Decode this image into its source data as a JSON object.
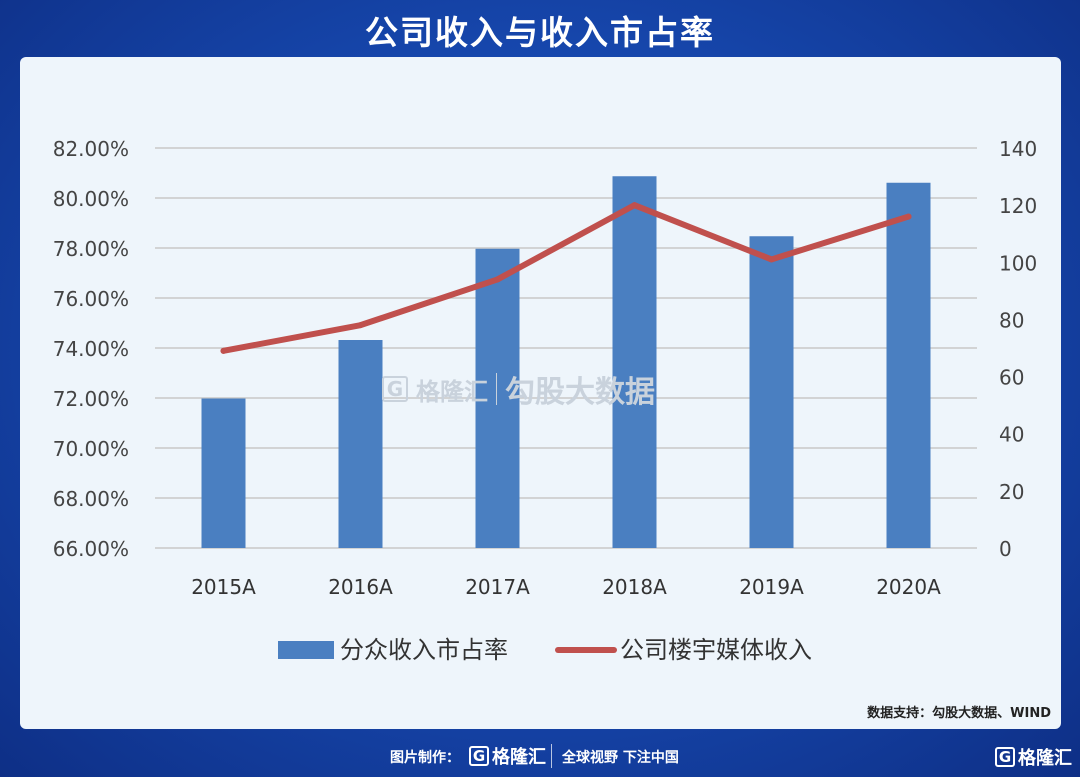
{
  "header": {
    "title": "公司收入与收入市占率"
  },
  "chart_data": {
    "type": "bar+line",
    "categories": [
      "2015A",
      "2016A",
      "2017A",
      "2018A",
      "2019A",
      "2020A"
    ],
    "series": [
      {
        "name": "分众收入市占率",
        "type": "bar",
        "axis": "left",
        "color": "#4a7fc1",
        "values": [
          71.98,
          74.32,
          77.97,
          80.87,
          78.47,
          80.61
        ]
      },
      {
        "name": "公司楼宇媒体收入",
        "type": "line",
        "axis": "right",
        "color": "#c0504d",
        "values": [
          69,
          78,
          94,
          120,
          101,
          116
        ]
      }
    ],
    "left_axis": {
      "min": 66,
      "max": 82,
      "step": 2,
      "tick_labels": [
        "66.00%",
        "68.00%",
        "70.00%",
        "72.00%",
        "74.00%",
        "76.00%",
        "78.00%",
        "80.00%",
        "82.00%"
      ]
    },
    "right_axis": {
      "min": 0,
      "max": 140,
      "step": 20,
      "tick_labels": [
        "0",
        "20",
        "40",
        "60",
        "80",
        "100",
        "120",
        "140"
      ]
    },
    "grid": true,
    "legend_position": "bottom"
  },
  "watermark": {
    "logo_text": "格隆汇",
    "divider_text": "勾股大数据"
  },
  "source": {
    "text": "数据支持：勾股大数据、WIND"
  },
  "footer": {
    "made_by": "图片制作：",
    "brand": "格隆汇",
    "slogan": "全球视野 下注中国",
    "corner_brand": "格隆汇",
    "logo_letter": "G"
  }
}
